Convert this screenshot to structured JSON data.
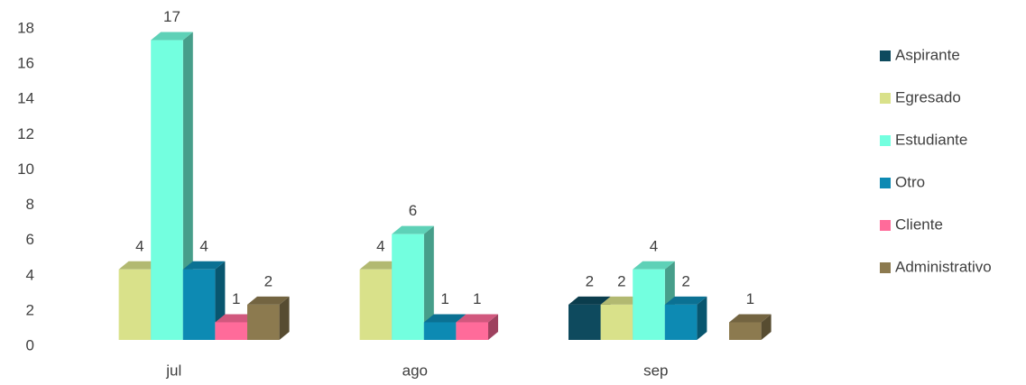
{
  "chart_data": {
    "type": "bar3d",
    "categories": [
      "jul",
      "ago",
      "sep"
    ],
    "series": [
      {
        "name": "Aspirante",
        "color": "#0e4a5e",
        "values": [
          null,
          null,
          2
        ]
      },
      {
        "name": "Egresado",
        "color": "#d9e18a",
        "values": [
          4,
          4,
          2
        ]
      },
      {
        "name": "Estudiante",
        "color": "#73ffdf",
        "values": [
          17,
          6,
          4
        ]
      },
      {
        "name": "Otro",
        "color": "#0d8ab3",
        "values": [
          4,
          1,
          2
        ]
      },
      {
        "name": "Cliente",
        "color": "#ff6b9a",
        "values": [
          1,
          1,
          null
        ]
      },
      {
        "name": "Administrativo",
        "color": "#8c7a4f",
        "values": [
          2,
          null,
          1
        ]
      }
    ],
    "ylim": [
      0,
      18
    ],
    "yticks": [
      0,
      2,
      4,
      6,
      8,
      10,
      12,
      14,
      16,
      18
    ],
    "grid": false,
    "legend": "right"
  }
}
